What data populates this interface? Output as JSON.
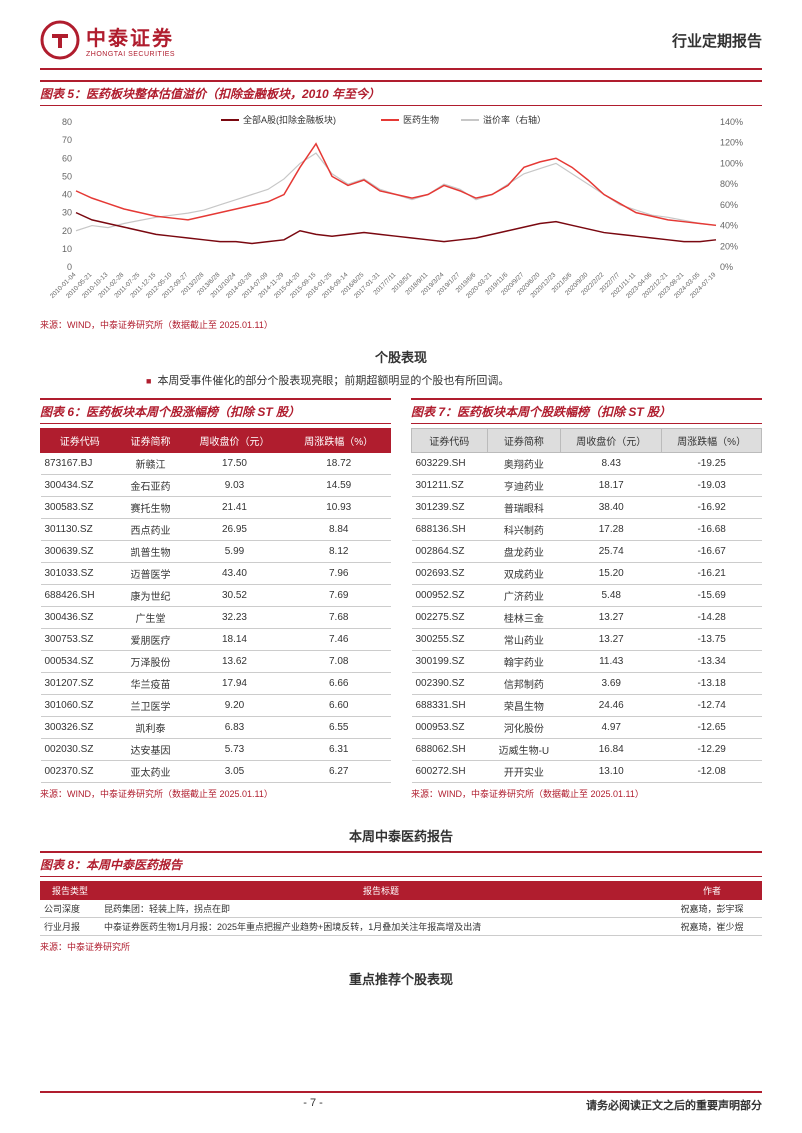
{
  "header": {
    "logo_cn": "中泰证券",
    "logo_en": "ZHONGTAI SECURITIES",
    "right": "行业定期报告"
  },
  "fig5": {
    "title": "图表 5：医药板块整体估值溢价（扣除金融板块，2010 年至今）",
    "legend": [
      "全部A股(扣除金融板块)",
      "医药生物",
      "溢价率（右轴）"
    ],
    "colors": [
      "#7a0810",
      "#e53935",
      "#c7c7c7"
    ],
    "y_left": {
      "min": 0,
      "max": 80,
      "step": 10
    },
    "y_right": {
      "min": 0,
      "max": 140,
      "step": 20,
      "suffix": "%"
    },
    "x_labels": [
      "2010-01-04",
      "2010-05-21",
      "2010-10-13",
      "2011-02-28",
      "2011-07-25",
      "2011-12-15",
      "2012-05-10",
      "2012-09-27",
      "2013/2/28",
      "2013/6/28",
      "2013/10/24",
      "2014-03-28",
      "2014-07-09",
      "2014-11-29",
      "2015-04-20",
      "2015-09-15",
      "2016-01-25",
      "2016-09-14",
      "2016/6/25",
      "2017-01-31",
      "2017/7/11",
      "2018/5/1",
      "2018/9/11",
      "2019/3/24",
      "2019/1/27",
      "2019/6/6",
      "2020-03-21",
      "2019/11/6",
      "2020/9/27",
      "2020/6/20",
      "2020/12/23",
      "2021/5/6",
      "2020/9/30",
      "2022/2/22",
      "2022/7/7",
      "2021/11-11",
      "2023-04-06",
      "2022/12-21",
      "2023-08-21",
      "2024-03-05",
      "2024-07-19"
    ],
    "series_a": [
      30,
      26,
      24,
      22,
      20,
      18,
      17,
      16,
      15,
      14,
      14,
      13,
      14,
      15,
      20,
      18,
      17,
      18,
      19,
      18,
      17,
      16,
      15,
      14,
      15,
      16,
      18,
      20,
      22,
      24,
      25,
      23,
      21,
      19,
      18,
      17,
      16,
      15,
      14,
      14,
      15
    ],
    "series_med": [
      42,
      38,
      35,
      32,
      30,
      28,
      27,
      26,
      28,
      30,
      32,
      34,
      36,
      40,
      55,
      68,
      50,
      45,
      48,
      42,
      40,
      38,
      40,
      45,
      42,
      38,
      40,
      45,
      55,
      58,
      60,
      55,
      48,
      40,
      35,
      30,
      28,
      26,
      25,
      24,
      23
    ],
    "series_prem": [
      35,
      40,
      38,
      42,
      45,
      48,
      50,
      52,
      55,
      60,
      65,
      70,
      75,
      85,
      100,
      110,
      90,
      80,
      85,
      75,
      70,
      65,
      70,
      80,
      75,
      65,
      70,
      80,
      90,
      95,
      100,
      90,
      80,
      70,
      60,
      55,
      50,
      48,
      45,
      42,
      40
    ],
    "source": "来源：WIND，中泰证券研究所（数据截止至 2025.01.11）"
  },
  "stock_section": {
    "title": "个股表现",
    "bullet": "本周受事件催化的部分个股表现亮眼；前期超额明显的个股也有所回调。"
  },
  "fig6": {
    "title": "图表 6：医药板块本周个股涨幅榜（扣除 ST 股）",
    "headers": [
      "证券代码",
      "证券简称",
      "周收盘价（元）",
      "周涨跌幅（%）"
    ],
    "rows": [
      [
        "873167.BJ",
        "新赣江",
        "17.50",
        "18.72"
      ],
      [
        "300434.SZ",
        "金石亚药",
        "9.03",
        "14.59"
      ],
      [
        "300583.SZ",
        "赛托生物",
        "21.41",
        "10.93"
      ],
      [
        "301130.SZ",
        "西点药业",
        "26.95",
        "8.84"
      ],
      [
        "300639.SZ",
        "凯普生物",
        "5.99",
        "8.12"
      ],
      [
        "301033.SZ",
        "迈普医学",
        "43.40",
        "7.96"
      ],
      [
        "688426.SH",
        "康为世纪",
        "30.52",
        "7.69"
      ],
      [
        "300436.SZ",
        "广生堂",
        "32.23",
        "7.68"
      ],
      [
        "300753.SZ",
        "爱朋医疗",
        "18.14",
        "7.46"
      ],
      [
        "000534.SZ",
        "万泽股份",
        "13.62",
        "7.08"
      ],
      [
        "301207.SZ",
        "华兰疫苗",
        "17.94",
        "6.66"
      ],
      [
        "301060.SZ",
        "兰卫医学",
        "9.20",
        "6.60"
      ],
      [
        "300326.SZ",
        "凯利泰",
        "6.83",
        "6.55"
      ],
      [
        "002030.SZ",
        "达安基因",
        "5.73",
        "6.31"
      ],
      [
        "002370.SZ",
        "亚太药业",
        "3.05",
        "6.27"
      ]
    ],
    "source": "来源：WIND，中泰证券研究所（数据截止至 2025.01.11）"
  },
  "fig7": {
    "title": "图表 7：医药板块本周个股跌幅榜（扣除 ST 股）",
    "headers": [
      "证券代码",
      "证券简称",
      "周收盘价（元）",
      "周涨跌幅（%）"
    ],
    "rows": [
      [
        "603229.SH",
        "奥翔药业",
        "8.43",
        "-19.25"
      ],
      [
        "301211.SZ",
        "亨迪药业",
        "18.17",
        "-19.03"
      ],
      [
        "301239.SZ",
        "普瑞眼科",
        "38.40",
        "-16.92"
      ],
      [
        "688136.SH",
        "科兴制药",
        "17.28",
        "-16.68"
      ],
      [
        "002864.SZ",
        "盘龙药业",
        "25.74",
        "-16.67"
      ],
      [
        "002693.SZ",
        "双成药业",
        "15.20",
        "-16.21"
      ],
      [
        "000952.SZ",
        "广济药业",
        "5.48",
        "-15.69"
      ],
      [
        "002275.SZ",
        "桂林三金",
        "13.27",
        "-14.28"
      ],
      [
        "300255.SZ",
        "常山药业",
        "13.27",
        "-13.75"
      ],
      [
        "300199.SZ",
        "翰宇药业",
        "11.43",
        "-13.34"
      ],
      [
        "002390.SZ",
        "信邦制药",
        "3.69",
        "-13.18"
      ],
      [
        "688331.SH",
        "荣昌生物",
        "24.46",
        "-12.74"
      ],
      [
        "000953.SZ",
        "河化股份",
        "4.97",
        "-12.65"
      ],
      [
        "688062.SH",
        "迈威生物-U",
        "16.84",
        "-12.29"
      ],
      [
        "600272.SH",
        "开开实业",
        "13.10",
        "-12.08"
      ]
    ],
    "source": "来源：WIND，中泰证券研究所（数据截止至 2025.01.11）"
  },
  "report_section": {
    "title": "本周中泰医药报告"
  },
  "fig8": {
    "title": "图表 8：本周中泰医药报告",
    "headers": [
      "报告类型",
      "报告标题",
      "作者"
    ],
    "rows": [
      [
        "公司深度",
        "昆药集团：轻装上阵，拐点在即",
        "祝嘉琦，彭宇琛"
      ],
      [
        "行业月报",
        "中泰证券医药生物1月月报：2025年重点把握产业趋势+困境反转，1月叠加关注年报高增及出清",
        "祝嘉琦，崔少煜"
      ]
    ],
    "source": "来源：中泰证券研究所"
  },
  "rec_section": {
    "title": "重点推荐个股表现"
  },
  "footer": {
    "page": "- 7 -",
    "disclaimer": "请务必阅读正文之后的重要声明部分"
  }
}
